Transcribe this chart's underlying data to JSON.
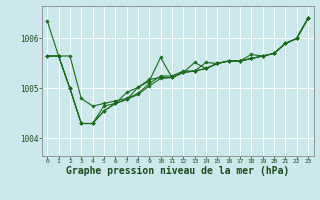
{
  "background_color": "#cce8ed",
  "grid_color": "#ffffff",
  "line_color": "#1a6b1a",
  "marker_color": "#1a6b1a",
  "xlabel": "Graphe pression niveau de la mer (hPa)",
  "xlabel_fontsize": 7.0,
  "xlim": [
    -0.5,
    23.5
  ],
  "ylim": [
    1003.65,
    1006.65
  ],
  "ytick_vals": [
    1004,
    1005,
    1006
  ],
  "ytick_labels": [
    "1004",
    "1005",
    "1006"
  ],
  "xticks": [
    0,
    1,
    2,
    3,
    4,
    5,
    6,
    7,
    8,
    9,
    10,
    11,
    12,
    13,
    14,
    15,
    16,
    17,
    18,
    19,
    20,
    21,
    22,
    23
  ],
  "series": [
    [
      1006.35,
      1005.65,
      1005.65,
      1004.8,
      1004.65,
      1004.7,
      1004.75,
      1004.8,
      1004.9,
      1005.1,
      1005.25,
      1005.25,
      1005.35,
      1005.35,
      1005.4,
      1005.5,
      1005.55,
      1005.55,
      1005.6,
      1005.65,
      1005.7,
      1005.9,
      1006.0,
      1006.4
    ],
    [
      1005.65,
      1005.65,
      1005.0,
      1004.3,
      1004.3,
      1004.55,
      1004.7,
      1004.78,
      1004.88,
      1005.05,
      1005.2,
      1005.22,
      1005.32,
      1005.35,
      1005.4,
      1005.5,
      1005.55,
      1005.55,
      1005.6,
      1005.65,
      1005.7,
      1005.9,
      1006.0,
      1006.4
    ],
    [
      1005.65,
      1005.65,
      1005.0,
      1004.3,
      1004.3,
      1004.55,
      1004.7,
      1004.78,
      1005.02,
      1005.18,
      1005.22,
      1005.22,
      1005.32,
      1005.52,
      1005.4,
      1005.5,
      1005.55,
      1005.55,
      1005.6,
      1005.65,
      1005.7,
      1005.9,
      1006.0,
      1006.4
    ],
    [
      1005.65,
      1005.65,
      1005.0,
      1004.3,
      1004.3,
      1004.65,
      1004.7,
      1004.92,
      1005.02,
      1005.15,
      1005.62,
      1005.22,
      1005.32,
      1005.35,
      1005.52,
      1005.5,
      1005.55,
      1005.55,
      1005.68,
      1005.65,
      1005.7,
      1005.9,
      1006.0,
      1006.4
    ]
  ]
}
